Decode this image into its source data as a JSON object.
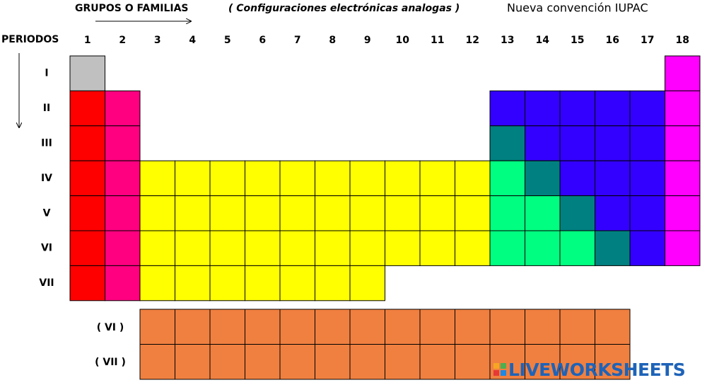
{
  "header": {
    "groups_title": "GRUPOS O FAMILIAS",
    "subtitle": "( Configuraciones electrónicas analogas )",
    "convention": "Nueva convención IUPAC"
  },
  "periods_label": "PERIODOS",
  "groups": [
    "1",
    "2",
    "3",
    "4",
    "5",
    "6",
    "7",
    "8",
    "9",
    "10",
    "11",
    "12",
    "13",
    "14",
    "15",
    "16",
    "17",
    "18"
  ],
  "periods": [
    "I",
    "II",
    "III",
    "IV",
    "V",
    "VI",
    "VII"
  ],
  "inner_transition_periods": [
    "( VI )",
    "( VII )"
  ],
  "watermark": "LIVEWORKSHEETS"
}
